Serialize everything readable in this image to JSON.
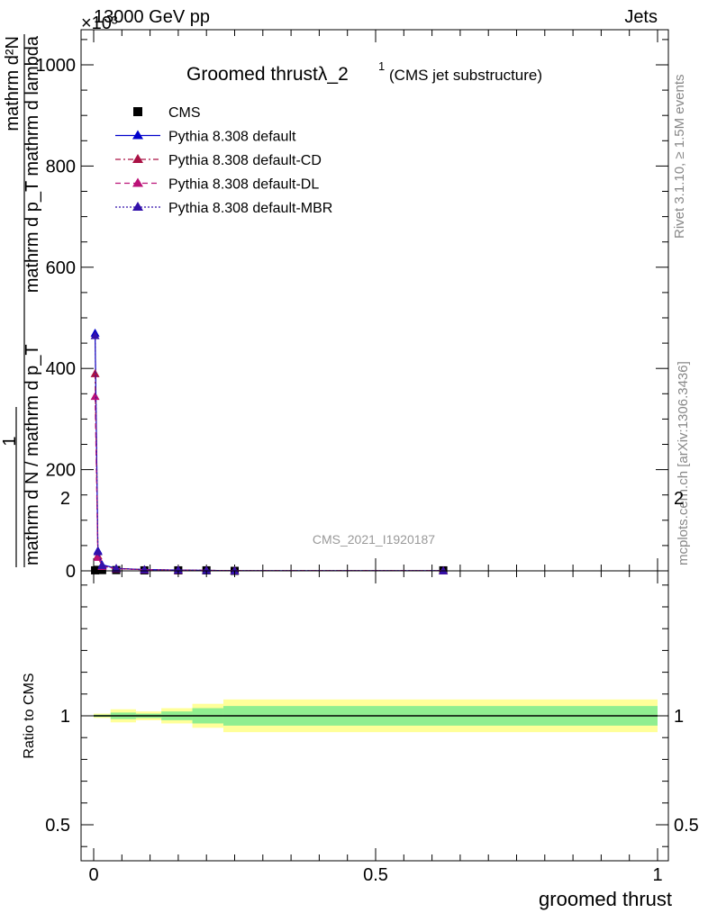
{
  "header": {
    "left": "13000 GeV pp",
    "right": "Jets"
  },
  "side_labels": {
    "rivet": "Rivet 3.1.10, ≥ 1.5M events",
    "mcplots": "mcplots.cern.ch [arXiv:1306.3436]"
  },
  "watermark": "CMS_2021_I1920187",
  "chart_data": [
    {
      "type": "line",
      "title": "Groomed thrustλ_2",
      "title_sup": "1",
      "subtitle": "(CMS jet substructure)",
      "ylabel_top": "mathrm d²N",
      "ylabel_mid": "mathrm d p_T mathrm d lambda",
      "ylabel_frac_num": "1",
      "ylabel_frac_den": "mathrm d N / mathrm d p_T",
      "y_exponent_label": "×10³",
      "xlim": [
        0,
        1
      ],
      "ylim": [
        0,
        1000
      ],
      "yticks": [
        0,
        200,
        400,
        600,
        800,
        1000
      ],
      "ytick_labels": [
        "0",
        "200",
        "400",
        "600",
        "800",
        "1000"
      ],
      "legend_position": "top-left",
      "data_x": [
        0.0025,
        0.0075,
        0.015,
        0.04,
        0.09,
        0.15,
        0.2,
        0.25,
        0.62
      ],
      "series": [
        {
          "name": "CMS",
          "style": "marker-square",
          "color": "#000000",
          "values": [
            1.0,
            2.0,
            1.5,
            1.5,
            1.0,
            1.0,
            1.0,
            0.0,
            1.0
          ]
        },
        {
          "name": "Pythia 8.308 default",
          "style": "solid",
          "color": "#0000cc",
          "values": [
            470,
            40,
            12,
            5,
            2.5,
            1.5,
            1.0,
            0.3,
            0.2
          ]
        },
        {
          "name": "Pythia 8.308 default-CD",
          "style": "dashdot",
          "color": "#aa1144",
          "values": [
            390,
            30,
            10,
            4.5,
            2.3,
            1.4,
            1.0,
            0.3,
            0.2
          ]
        },
        {
          "name": "Pythia 8.308 default-DL",
          "style": "dashed",
          "color": "#bb1177",
          "values": [
            345,
            27,
            9,
            4.2,
            2.2,
            1.3,
            0.9,
            0.3,
            0.2
          ]
        },
        {
          "name": "Pythia 8.308 default-MBR",
          "style": "dotted",
          "color": "#3311aa",
          "values": [
            465,
            38,
            11,
            4.8,
            2.4,
            1.5,
            1.0,
            0.3,
            0.2
          ]
        }
      ]
    },
    {
      "type": "line",
      "ylabel": "Ratio to CMS",
      "xlabel": "groomed thrust",
      "xlim": [
        0,
        1
      ],
      "ylim": [
        0.35,
        2.3
      ],
      "xticks": [
        0,
        0.5,
        1
      ],
      "xtick_labels": [
        "0",
        "0.5",
        "1"
      ],
      "yticks": [
        0.5,
        1,
        2
      ],
      "ytick_labels": [
        "0.5",
        "1",
        "2"
      ],
      "reference": 1,
      "band_edges": [
        0,
        0.03,
        0.075,
        0.12,
        0.175,
        0.23,
        1.0
      ],
      "band_inner_half": [
        0.005,
        0.015,
        0.01,
        0.02,
        0.035,
        0.045
      ],
      "band_outer_half": [
        0.01,
        0.03,
        0.02,
        0.035,
        0.055,
        0.075
      ],
      "band_inner_color": "#90ee90",
      "band_outer_color": "#ffff99"
    }
  ]
}
